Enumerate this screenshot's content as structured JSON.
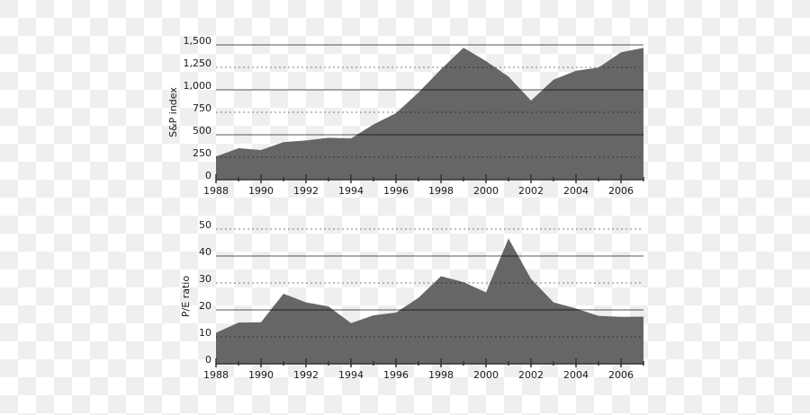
{
  "chart_data": [
    {
      "type": "area",
      "title": "",
      "xlabel": "",
      "ylabel": "S&P index",
      "x": [
        1988,
        1989,
        1990,
        1991,
        1992,
        1993,
        1994,
        1995,
        1996,
        1997,
        1998,
        1999,
        2000,
        2001,
        2002,
        2003,
        2004,
        2005,
        2006,
        2007
      ],
      "values": [
        257,
        350,
        330,
        417,
        436,
        466,
        459,
        615,
        740,
        970,
        1229,
        1469,
        1320,
        1148,
        880,
        1112,
        1212,
        1248,
        1418,
        1468
      ],
      "ylim": [
        0,
        1500
      ],
      "yticks": [
        0,
        250,
        500,
        750,
        1000,
        1250,
        1500
      ],
      "ytick_labels": [
        "0",
        "250",
        "500",
        "750",
        "1,000",
        "1,250",
        "1,500"
      ],
      "xticks": [
        1988,
        1990,
        1992,
        1994,
        1996,
        1998,
        2000,
        2002,
        2004,
        2006
      ],
      "xtick_labels": [
        "1988",
        "1990",
        "1992",
        "1994",
        "1996",
        "1998",
        "2000",
        "2002",
        "2004",
        "2006"
      ],
      "grid": true,
      "grid_style": "solid at 500-multiples, dotted at odd 250-multiples",
      "fill_color": "#666666",
      "legend": null
    },
    {
      "type": "area",
      "title": "",
      "xlabel": "",
      "ylabel": "P/E ratio",
      "x": [
        1988,
        1989,
        1990,
        1991,
        1992,
        1993,
        1994,
        1995,
        1996,
        1997,
        1998,
        1999,
        2000,
        2001,
        2002,
        2003,
        2004,
        2005,
        2006,
        2007
      ],
      "values": [
        11.5,
        15.3,
        15.4,
        26.0,
        22.8,
        21.3,
        15.1,
        18.0,
        19.0,
        24.5,
        32.5,
        30.3,
        26.5,
        46.5,
        31.5,
        22.8,
        20.5,
        17.8,
        17.4,
        17.5
      ],
      "ylim": [
        0,
        50
      ],
      "yticks": [
        0,
        10,
        20,
        30,
        40,
        50
      ],
      "ytick_labels": [
        "0",
        "10",
        "20",
        "30",
        "40",
        "50"
      ],
      "xticks": [
        1988,
        1990,
        1992,
        1994,
        1996,
        1998,
        2000,
        2002,
        2004,
        2006
      ],
      "xtick_labels": [
        "1988",
        "1990",
        "1992",
        "1994",
        "1996",
        "1998",
        "2000",
        "2002",
        "2004",
        "2006"
      ],
      "grid": true,
      "grid_style": "solid at 20,40; dotted at 10,30,50",
      "fill_color": "#666666",
      "legend": null
    }
  ],
  "colors": {
    "fill": "#666666",
    "grid": "#aaaaaa",
    "axis": "#333333",
    "text": "#1a1a1a"
  }
}
